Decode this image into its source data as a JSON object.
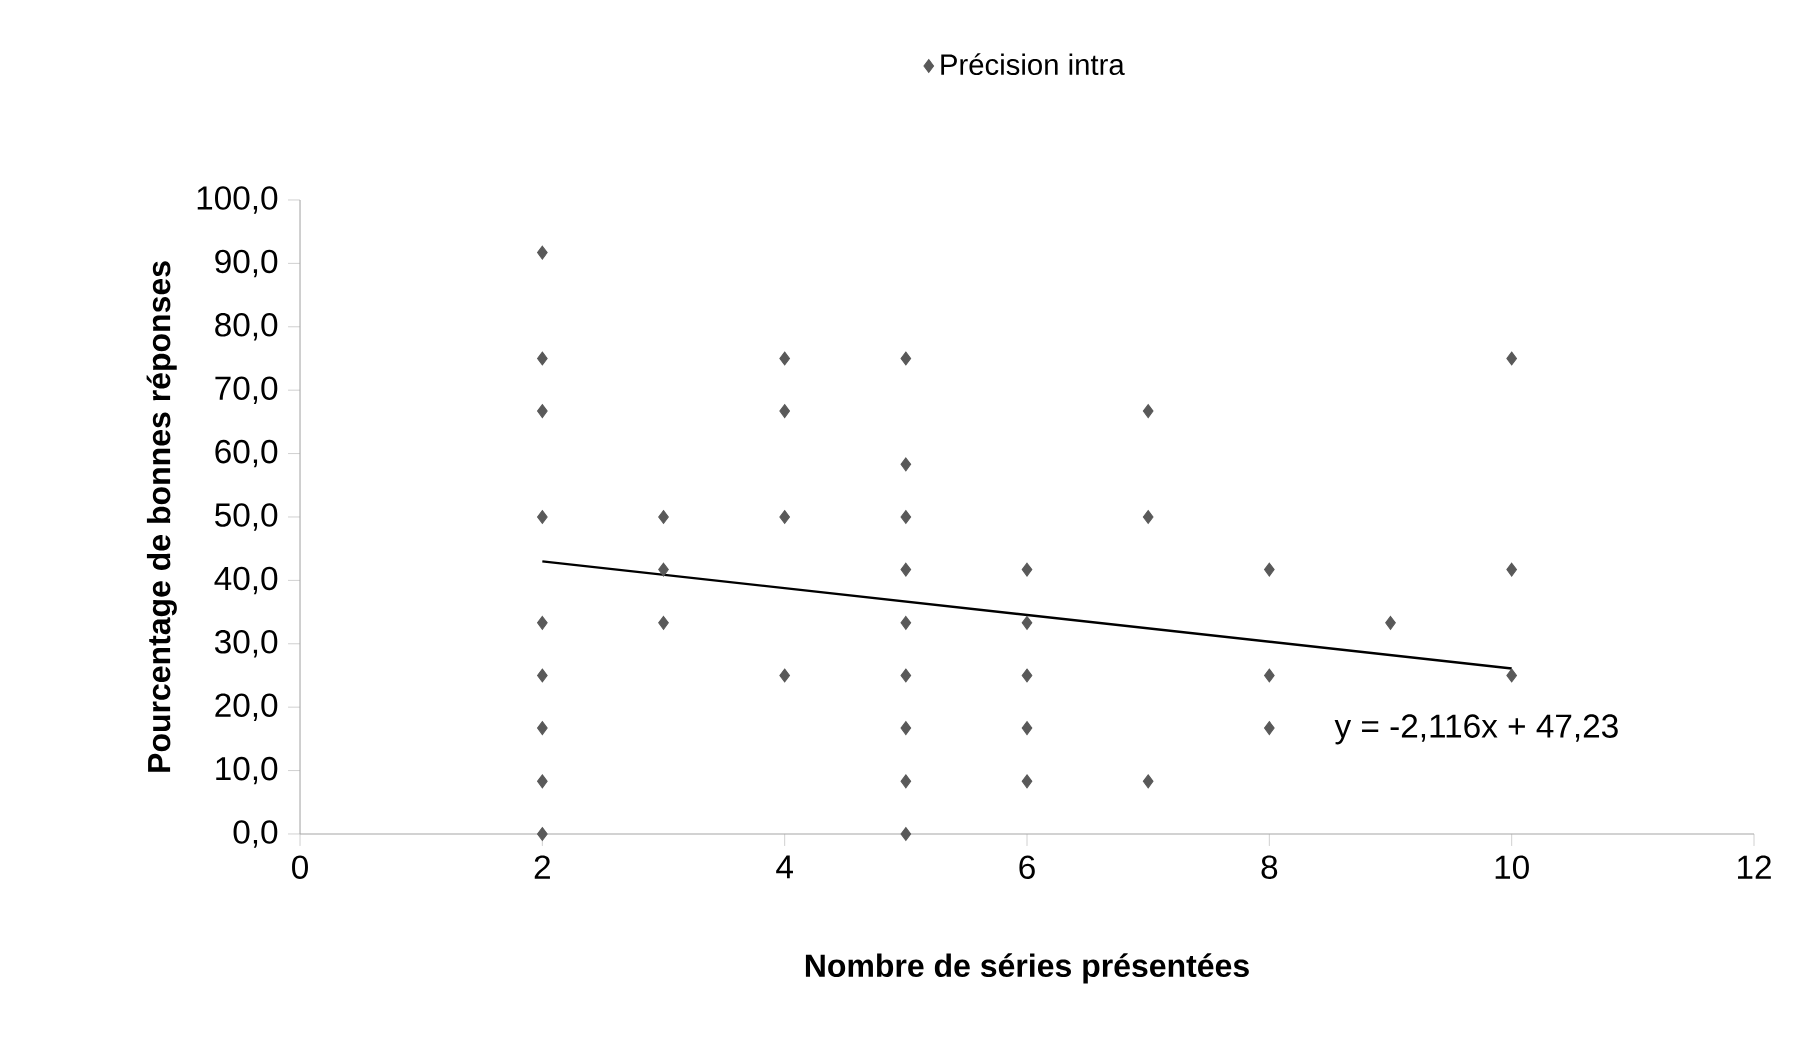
{
  "chart_data": {
    "type": "scatter",
    "xlabel": "Nombre de séries présentées",
    "ylabel": "Pourcentage de bonnes réponses",
    "legend": "top",
    "grid": false,
    "xlim": [
      0,
      12
    ],
    "xticks": [
      0,
      2,
      4,
      6,
      8,
      10,
      12
    ],
    "ylim": [
      0,
      100
    ],
    "yticks": [
      {
        "value": 0,
        "label": "0,0"
      },
      {
        "value": 10,
        "label": "10,0"
      },
      {
        "value": 20,
        "label": "20,0"
      },
      {
        "value": 30,
        "label": "30,0"
      },
      {
        "value": 40,
        "label": "40,0"
      },
      {
        "value": 50,
        "label": "50,0"
      },
      {
        "value": 60,
        "label": "60,0"
      },
      {
        "value": 70,
        "label": "70,0"
      },
      {
        "value": 80,
        "label": "80,0"
      },
      {
        "value": 90,
        "label": "90,0"
      },
      {
        "value": 100,
        "label": "100,0"
      }
    ],
    "annotations": [
      "y = -2,116x + 47,23"
    ],
    "series": [
      {
        "name": "Précision intra",
        "color": "#595959",
        "marker": "diamond",
        "x": [
          2,
          2,
          2,
          2,
          2,
          2,
          2,
          2,
          2,
          3,
          3,
          3,
          4,
          4,
          4,
          4,
          5,
          5,
          5,
          5,
          5,
          5,
          5,
          5,
          5,
          6,
          6,
          6,
          6,
          6,
          7,
          7,
          7,
          8,
          8,
          8,
          9,
          10,
          10,
          10
        ],
        "values": [
          91.7,
          75,
          66.7,
          50,
          33.3,
          25,
          16.7,
          8.3,
          0,
          50,
          41.7,
          33.3,
          75,
          66.7,
          50,
          25,
          75,
          58.3,
          50,
          41.7,
          33.3,
          25,
          16.7,
          8.3,
          0,
          41.7,
          33.3,
          25,
          16.7,
          8.3,
          66.7,
          50,
          8.3,
          41.7,
          25,
          16.7,
          33.3,
          75,
          41.7,
          25
        ]
      },
      {
        "type": "line",
        "color": "#000000",
        "x": [
          2,
          10
        ],
        "values": [
          43.0,
          26.1
        ]
      }
    ]
  }
}
